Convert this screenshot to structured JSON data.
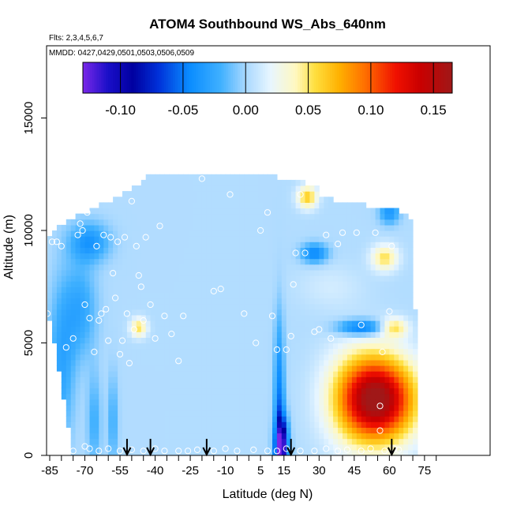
{
  "chart_data": {
    "type": "heatmap",
    "title": "ATOM4 Southbound WS_Abs_640nm",
    "flights_note": "Flts: 2,3,4,5,6,7",
    "dates_note": "MMDD: 0427,0429,0501,0503,0506,0509",
    "xlabel": "Latitude (deg N)",
    "ylabel": "Altitude (m)",
    "xlim": [
      -88,
      82
    ],
    "ylim": [
      0,
      17000
    ],
    "x_ticks": [
      -85,
      -70,
      -55,
      -40,
      -25,
      -10,
      5,
      15,
      30,
      45,
      60,
      75
    ],
    "x_minor_ticks": [
      -80,
      -75,
      -65,
      -60,
      -50,
      -45,
      -35,
      -30,
      -20,
      -15,
      -5,
      0,
      10,
      20,
      25,
      35,
      40,
      50,
      55,
      65,
      70,
      80
    ],
    "y_ticks": [
      0,
      5000,
      10000,
      15000
    ],
    "colorbar": {
      "min": -0.13,
      "max": 0.165,
      "ticks": [
        -0.1,
        -0.05,
        0.0,
        0.05,
        0.1,
        0.15
      ],
      "tick_labels": [
        "-0.10",
        "-0.05",
        "0.00",
        "0.05",
        "0.10",
        "0.15"
      ],
      "stops": [
        {
          "v": -0.13,
          "c": "#7a28e8"
        },
        {
          "v": -0.11,
          "c": "#1a0fc8"
        },
        {
          "v": -0.09,
          "c": "#0000a0"
        },
        {
          "v": -0.07,
          "c": "#0030d8"
        },
        {
          "v": -0.045,
          "c": "#0a8cff"
        },
        {
          "v": -0.02,
          "c": "#3fb0ff"
        },
        {
          "v": 0.0,
          "c": "#a8d8ff"
        },
        {
          "v": 0.02,
          "c": "#e8f6ff"
        },
        {
          "v": 0.04,
          "c": "#fff8c0"
        },
        {
          "v": 0.055,
          "c": "#ffe040"
        },
        {
          "v": 0.075,
          "c": "#ffb000"
        },
        {
          "v": 0.095,
          "c": "#ff7000"
        },
        {
          "v": 0.12,
          "c": "#f01000"
        },
        {
          "v": 0.14,
          "c": "#c80000"
        },
        {
          "v": 0.165,
          "c": "#a01818"
        }
      ]
    },
    "profile_latitudes": [
      -52,
      -42,
      -18,
      18,
      61
    ],
    "fields": {
      "background": 0.003,
      "features": [
        {
          "lat": 56,
          "alt": 2500,
          "sx": 11,
          "sy": 1300,
          "v": 0.145
        },
        {
          "lat": 46,
          "alt": 2600,
          "sx": 10,
          "sy": 1500,
          "v": 0.04
        },
        {
          "lat": 14,
          "alt": 400,
          "sx": 2,
          "sy": 900,
          "v": -0.12
        },
        {
          "lat": 13,
          "alt": 2500,
          "sx": 1.5,
          "sy": 2500,
          "v": -0.05
        },
        {
          "lat": 48,
          "alt": 5700,
          "sx": 7,
          "sy": 250,
          "v": -0.06
        },
        {
          "lat": 62,
          "alt": 5700,
          "sx": 4,
          "sy": 300,
          "v": 0.05
        },
        {
          "lat": 28,
          "alt": 9000,
          "sx": 4,
          "sy": 300,
          "v": -0.05
        },
        {
          "lat": 58,
          "alt": 8800,
          "sx": 4,
          "sy": 400,
          "v": 0.05
        },
        {
          "lat": 60,
          "alt": 10800,
          "sx": 3,
          "sy": 350,
          "v": -0.04
        },
        {
          "lat": 25,
          "alt": 11500,
          "sx": 3,
          "sy": 350,
          "v": 0.06
        },
        {
          "lat": -47,
          "alt": 5700,
          "sx": 2.5,
          "sy": 300,
          "v": 0.05
        },
        {
          "lat": -68,
          "alt": 9500,
          "sx": 6,
          "sy": 600,
          "v": -0.04
        },
        {
          "lat": -72,
          "alt": 6500,
          "sx": 5,
          "sy": 1500,
          "v": -0.03
        },
        {
          "lat": -80,
          "alt": 4000,
          "sx": 4,
          "sy": 2500,
          "v": -0.03
        },
        {
          "lat": -66,
          "alt": 1500,
          "sx": 2,
          "sy": 1500,
          "v": -0.025
        },
        {
          "lat": -58,
          "alt": 1500,
          "sx": 1.5,
          "sy": 1500,
          "v": -0.025
        },
        {
          "lat": 35,
          "alt": 7500,
          "sx": 10,
          "sy": 700,
          "v": 0.01
        }
      ]
    },
    "envelope": [
      {
        "alt": 0,
        "lat_min": -75,
        "lat_max": 72
      },
      {
        "alt": 2000,
        "lat_min": -78,
        "lat_max": 72
      },
      {
        "alt": 4500,
        "lat_min": -82,
        "lat_max": 72
      },
      {
        "alt": 6500,
        "lat_min": -86,
        "lat_max": 71
      },
      {
        "alt": 9500,
        "lat_min": -86,
        "lat_max": 70
      },
      {
        "alt": 10200,
        "lat_min": -82,
        "lat_max": 70
      },
      {
        "alt": 10800,
        "lat_min": -70,
        "lat_max": 68
      },
      {
        "alt": 11500,
        "lat_min": -55,
        "lat_max": 30
      },
      {
        "alt": 12000,
        "lat_min": -48,
        "lat_max": 30
      },
      {
        "alt": 12600,
        "lat_min": -40,
        "lat_max": 0
      }
    ],
    "observation_points": [
      [
        -86,
        6300
      ],
      [
        -84,
        9500
      ],
      [
        -82,
        9500
      ],
      [
        -80,
        9300
      ],
      [
        -78,
        4800
      ],
      [
        -75,
        5200
      ],
      [
        -73,
        9800
      ],
      [
        -72,
        10300
      ],
      [
        -71,
        10000
      ],
      [
        -70,
        6700
      ],
      [
        -69,
        10800
      ],
      [
        -68,
        6100
      ],
      [
        -66,
        4600
      ],
      [
        -65,
        9300
      ],
      [
        -64,
        6000
      ],
      [
        -63,
        6300
      ],
      [
        -62,
        9800
      ],
      [
        -61,
        6500
      ],
      [
        -60,
        5100
      ],
      [
        -59,
        9700
      ],
      [
        -58,
        8100
      ],
      [
        -57,
        7000
      ],
      [
        -56,
        9500
      ],
      [
        -55,
        4500
      ],
      [
        -54,
        5100
      ],
      [
        -53,
        9700
      ],
      [
        -52,
        6300
      ],
      [
        -51,
        4100
      ],
      [
        -50,
        11300
      ],
      [
        -49,
        5600
      ],
      [
        -48,
        9300
      ],
      [
        -47,
        8000
      ],
      [
        -46,
        7500
      ],
      [
        -45,
        6000
      ],
      [
        -44,
        9700
      ],
      [
        -42,
        6700
      ],
      [
        -40,
        5200
      ],
      [
        -38,
        10200
      ],
      [
        -36,
        6200
      ],
      [
        -33,
        5400
      ],
      [
        -30,
        4200
      ],
      [
        -28,
        6200
      ],
      [
        -20,
        12300
      ],
      [
        -15,
        7300
      ],
      [
        -12,
        7400
      ],
      [
        -8,
        11600
      ],
      [
        -2,
        6300
      ],
      [
        3,
        5000
      ],
      [
        5,
        10000
      ],
      [
        8,
        10800
      ],
      [
        10,
        6200
      ],
      [
        12,
        4700
      ],
      [
        16,
        4700
      ],
      [
        18,
        5300
      ],
      [
        19,
        7600
      ],
      [
        20,
        9000
      ],
      [
        22,
        11600
      ],
      [
        24,
        9000
      ],
      [
        28,
        5500
      ],
      [
        30,
        5600
      ],
      [
        33,
        9800
      ],
      [
        35,
        5200
      ],
      [
        38,
        9400
      ],
      [
        40,
        9900
      ],
      [
        46,
        9900
      ],
      [
        48,
        5800
      ],
      [
        54,
        9900
      ],
      [
        57,
        4600
      ],
      [
        60,
        6400
      ],
      [
        61,
        9300
      ],
      [
        56,
        2200
      ],
      [
        56,
        1100
      ],
      [
        62,
        300
      ],
      [
        -75,
        200
      ],
      [
        -70,
        400
      ],
      [
        -68,
        300
      ],
      [
        -64,
        200
      ],
      [
        -60,
        300
      ],
      [
        -55,
        200
      ],
      [
        -50,
        250
      ],
      [
        -45,
        200
      ],
      [
        -40,
        300
      ],
      [
        -36,
        200
      ],
      [
        -30,
        200
      ],
      [
        -26,
        200
      ],
      [
        -22,
        250
      ],
      [
        -15,
        200
      ],
      [
        -10,
        300
      ],
      [
        -5,
        200
      ],
      [
        2,
        250
      ],
      [
        8,
        200
      ],
      [
        12,
        200
      ],
      [
        16,
        300
      ],
      [
        22,
        200
      ],
      [
        28,
        200
      ],
      [
        33,
        300
      ],
      [
        38,
        200
      ],
      [
        42,
        250
      ],
      [
        48,
        200
      ],
      [
        52,
        300
      ],
      [
        58,
        200
      ],
      [
        64,
        250
      ]
    ]
  }
}
